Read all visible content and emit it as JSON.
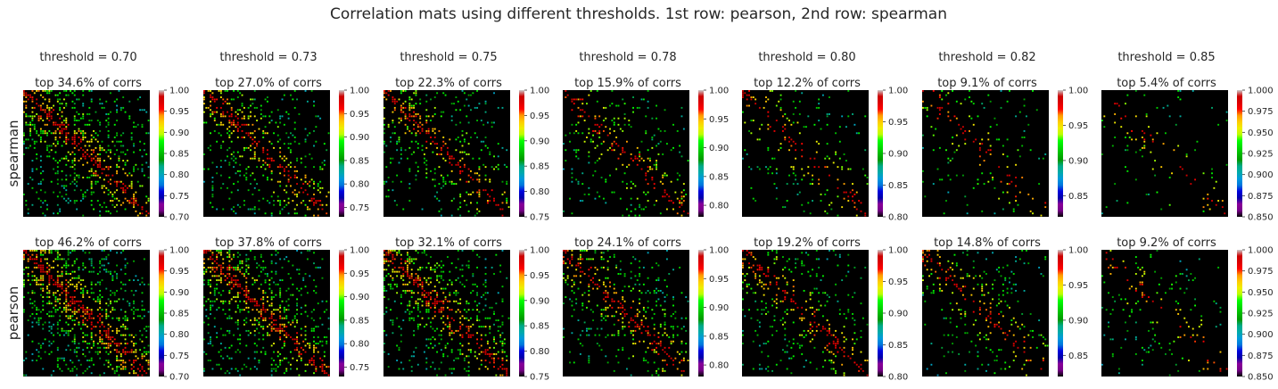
{
  "figure": {
    "title": "Correlation mats using different thresholds.  1st row: pearson, 2nd row: spearman"
  },
  "chart_data": {
    "type": "heatmap",
    "colormap": "nipy_spectral",
    "background": "#000000",
    "thresholds": [
      "threshold = 0.70",
      "threshold = 0.73",
      "threshold = 0.75",
      "threshold = 0.78",
      "threshold = 0.80",
      "threshold = 0.82",
      "threshold = 0.85"
    ],
    "threshold_values": [
      0.7,
      0.73,
      0.75,
      0.78,
      0.8,
      0.82,
      0.85
    ],
    "rows": [
      {
        "label": "spearman",
        "panels": [
          {
            "title": "top 34.6% of corrs",
            "pct": 34.6,
            "vmin": 0.7,
            "vmax": 1.0,
            "ticks": [
              "0.70",
              "0.75",
              "0.80",
              "0.85",
              "0.90",
              "0.95",
              "1.00"
            ]
          },
          {
            "title": "top 27.0% of corrs",
            "pct": 27.0,
            "vmin": 0.73,
            "vmax": 1.0,
            "ticks": [
              "0.75",
              "0.80",
              "0.85",
              "0.90",
              "0.95",
              "1.00"
            ]
          },
          {
            "title": "top 22.3% of corrs",
            "pct": 22.3,
            "vmin": 0.75,
            "vmax": 1.0,
            "ticks": [
              "0.75",
              "0.80",
              "0.85",
              "0.90",
              "0.95",
              "1.00"
            ]
          },
          {
            "title": "top 15.9% of corrs",
            "pct": 15.9,
            "vmin": 0.78,
            "vmax": 1.0,
            "ticks": [
              "0.80",
              "0.85",
              "0.90",
              "0.95",
              "1.00"
            ]
          },
          {
            "title": "top 12.2% of corrs",
            "pct": 12.2,
            "vmin": 0.8,
            "vmax": 1.0,
            "ticks": [
              "0.80",
              "0.85",
              "0.90",
              "0.95",
              "1.00"
            ]
          },
          {
            "title": "top 9.1% of corrs",
            "pct": 9.1,
            "vmin": 0.82,
            "vmax": 1.0,
            "ticks": [
              "0.85",
              "0.90",
              "0.95",
              "1.00"
            ]
          },
          {
            "title": "top 5.4% of corrs",
            "pct": 5.4,
            "vmin": 0.85,
            "vmax": 1.0,
            "ticks": [
              "0.850",
              "0.875",
              "0.900",
              "0.925",
              "0.950",
              "0.975",
              "1.000"
            ]
          }
        ]
      },
      {
        "label": "pearson",
        "panels": [
          {
            "title": "top 46.2% of corrs",
            "pct": 46.2,
            "vmin": 0.7,
            "vmax": 1.0,
            "ticks": [
              "0.70",
              "0.75",
              "0.80",
              "0.85",
              "0.90",
              "0.95",
              "1.00"
            ]
          },
          {
            "title": "top 37.8% of corrs",
            "pct": 37.8,
            "vmin": 0.73,
            "vmax": 1.0,
            "ticks": [
              "0.75",
              "0.80",
              "0.85",
              "0.90",
              "0.95",
              "1.00"
            ]
          },
          {
            "title": "top 32.1% of corrs",
            "pct": 32.1,
            "vmin": 0.75,
            "vmax": 1.0,
            "ticks": [
              "0.75",
              "0.80",
              "0.85",
              "0.90",
              "0.95",
              "1.00"
            ]
          },
          {
            "title": "top 24.1% of corrs",
            "pct": 24.1,
            "vmin": 0.78,
            "vmax": 1.0,
            "ticks": [
              "0.80",
              "0.85",
              "0.90",
              "0.95",
              "1.00"
            ]
          },
          {
            "title": "top 19.2% of corrs",
            "pct": 19.2,
            "vmin": 0.8,
            "vmax": 1.0,
            "ticks": [
              "0.80",
              "0.85",
              "0.90",
              "0.95",
              "1.00"
            ]
          },
          {
            "title": "top 14.8% of corrs",
            "pct": 14.8,
            "vmin": 0.82,
            "vmax": 1.0,
            "ticks": [
              "0.85",
              "0.90",
              "0.95",
              "1.00"
            ]
          },
          {
            "title": "top 9.2% of corrs",
            "pct": 9.2,
            "vmin": 0.85,
            "vmax": 1.0,
            "ticks": [
              "0.850",
              "0.875",
              "0.900",
              "0.925",
              "0.950",
              "0.975",
              "1.000"
            ]
          }
        ]
      }
    ]
  }
}
